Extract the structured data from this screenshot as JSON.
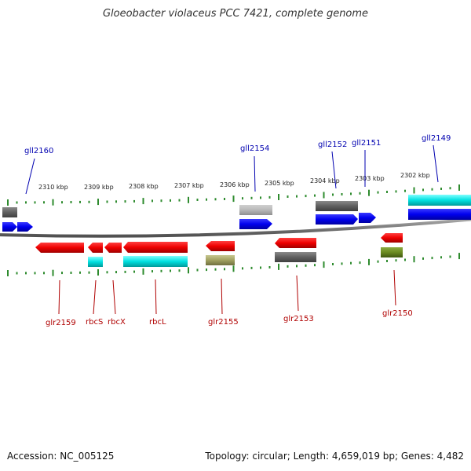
{
  "title": "Gloeobacter violaceus PCC 7421, complete genome",
  "accession_text": "Accession: NC_005125",
  "stats_text": "Topology: circular; Length: 4,659,019 bp; Genes: 4,482",
  "colors": {
    "backbone": "#888888",
    "forward_gene": "#0000ee",
    "reverse_gene": "#ee0000",
    "cds_cyan": "#00e0e0",
    "cds_gray": "#666666",
    "cds_olive": "#a0a060",
    "cds_green": "#6a8a20",
    "tick": "#2e8b2e",
    "forward_label": "#0000b0",
    "reverse_label": "#b00000"
  },
  "chart_data": {
    "type": "genome-map",
    "scale_kbp_labels": [
      "2310 kbp",
      "2309 kbp",
      "2308 kbp",
      "2307 kbp",
      "2306 kbp",
      "2305 kbp",
      "2304 kbp",
      "2303 kbp",
      "2302 kbp"
    ],
    "forward_genes": [
      {
        "name": "gll2160"
      },
      {
        "name": "gll2154"
      },
      {
        "name": "gll2152"
      },
      {
        "name": "gll2151"
      },
      {
        "name": "gll2149"
      }
    ],
    "reverse_genes": [
      {
        "name": "glr2159"
      },
      {
        "name": "rbcS"
      },
      {
        "name": "rbcX"
      },
      {
        "name": "rbcL"
      },
      {
        "name": "glr2155"
      },
      {
        "name": "glr2153"
      },
      {
        "name": "glr2150"
      }
    ]
  }
}
